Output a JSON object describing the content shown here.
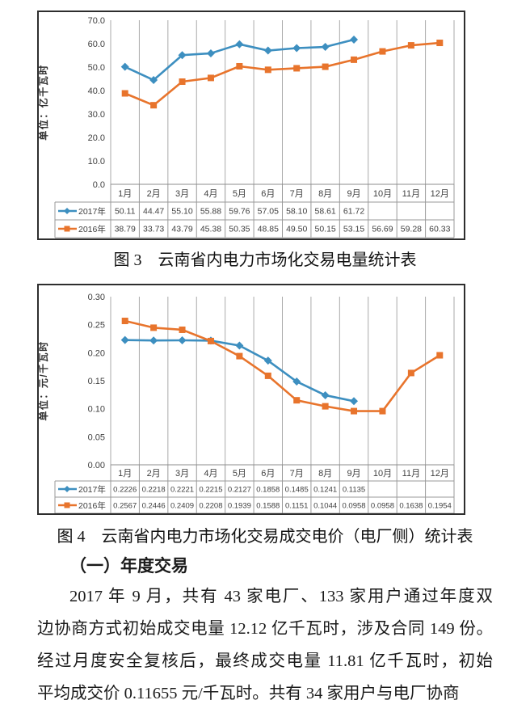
{
  "figure3": {
    "caption": "图 3　云南省内电力市场化交易电量统计表"
  },
  "figure4": {
    "caption": "图 4　云南省内电力市场化交易成交电价（电厂侧）统计表"
  },
  "section": {
    "heading": "（一）年度交易"
  },
  "paragraph": {
    "lines": [
      "2017 年 9 月，共有 43 家电厂、133 家用户通过年度双",
      "边协商方式初始成交电量 12.12 亿千瓦时，涉及合同 149 份。",
      "经过月度安全复核后，最终成交电量 11.81 亿千瓦时，初始",
      "平均成交价 0.11655 元/千瓦时。共有 34 家用户与电厂协商"
    ]
  },
  "colors": {
    "series2017": "#3d8fc0",
    "series2016": "#e8742c",
    "gridline": "#aaaaaa",
    "table_border": "#999999",
    "axis_line": "#8c8c8c",
    "chart_text": "#404040",
    "box_border": "#2e2e2e"
  },
  "chart_data": [
    {
      "type": "line",
      "title": "",
      "ylabel": "单位：亿千瓦时",
      "xlabel": "",
      "categories": [
        "1月",
        "2月",
        "3月",
        "4月",
        "5月",
        "6月",
        "7月",
        "8月",
        "9月",
        "10月",
        "11月",
        "12月"
      ],
      "ylim": [
        0,
        70
      ],
      "yticks": [
        "0.0",
        "10.0",
        "20.0",
        "30.0",
        "40.0",
        "50.0",
        "60.0",
        "70.0"
      ],
      "grid": "vertical-only",
      "legend_position": "data-table-left",
      "series": [
        {
          "name": "2017年",
          "color": "#3d8fc0",
          "marker": "diamond",
          "values": [
            50.11,
            44.47,
            55.1,
            55.88,
            59.76,
            57.05,
            58.1,
            58.61,
            61.72,
            null,
            null,
            null
          ],
          "display": [
            "50.11",
            "44.47",
            "55.10",
            "55.88",
            "59.76",
            "57.05",
            "58.10",
            "58.61",
            "61.72",
            "",
            "",
            ""
          ]
        },
        {
          "name": "2016年",
          "color": "#e8742c",
          "marker": "square",
          "values": [
            38.79,
            33.73,
            43.79,
            45.38,
            50.35,
            48.85,
            49.5,
            50.15,
            53.15,
            56.69,
            59.28,
            60.33
          ],
          "display": [
            "38.79",
            "33.73",
            "43.79",
            "45.38",
            "50.35",
            "48.85",
            "49.50",
            "50.15",
            "53.15",
            "56.69",
            "59.28",
            "60.33"
          ]
        }
      ]
    },
    {
      "type": "line",
      "title": "",
      "ylabel": "单位：元/千瓦时",
      "xlabel": "",
      "categories": [
        "1月",
        "2月",
        "3月",
        "4月",
        "5月",
        "6月",
        "7月",
        "8月",
        "9月",
        "10月",
        "11月",
        "12月"
      ],
      "ylim": [
        0,
        0.3
      ],
      "yticks": [
        "0.00",
        "0.05",
        "0.10",
        "0.15",
        "0.20",
        "0.25",
        "0.30"
      ],
      "grid": "vertical-only",
      "legend_position": "data-table-left",
      "series": [
        {
          "name": "2017年",
          "color": "#3d8fc0",
          "marker": "diamond",
          "values": [
            0.2226,
            0.2218,
            0.2221,
            0.2215,
            0.2127,
            0.1858,
            0.1485,
            0.1241,
            0.1135,
            null,
            null,
            null
          ],
          "display": [
            "0.2226",
            "0.2218",
            "0.2221",
            "0.2215",
            "0.2127",
            "0.1858",
            "0.1485",
            "0.1241",
            "0.1135",
            "",
            "",
            ""
          ]
        },
        {
          "name": "2016年",
          "color": "#e8742c",
          "marker": "square",
          "values": [
            0.2567,
            0.2446,
            0.2409,
            0.2208,
            0.1939,
            0.1588,
            0.1151,
            0.1044,
            0.0958,
            0.0958,
            0.1638,
            0.1954
          ],
          "display": [
            "0.2567",
            "0.2446",
            "0.2409",
            "0.2208",
            "0.1939",
            "0.1588",
            "0.1151",
            "0.1044",
            "0.0958",
            "0.0958",
            "0.1638",
            "0.1954"
          ]
        }
      ]
    }
  ]
}
